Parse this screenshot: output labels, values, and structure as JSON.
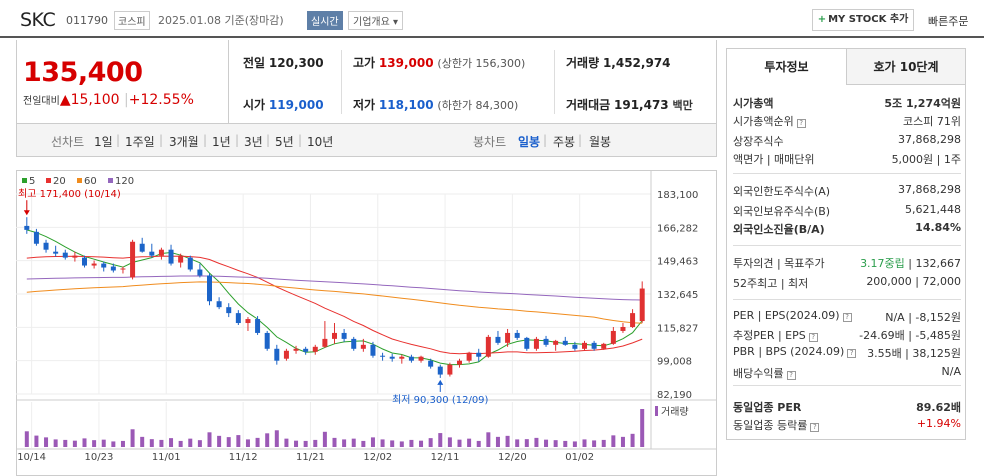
{
  "header": {
    "name": "SKC",
    "code": "011790",
    "market": "코스피",
    "date": "2025.01.08 기준(장마감)",
    "realtime": "실시간",
    "overview": "기업개요",
    "mystock_plus": "+",
    "mystock": "MY STOCK 추가",
    "quick": "빠른주문"
  },
  "price": {
    "current": "135,400",
    "change_label": "전일대비",
    "change_arrow": "▲",
    "change": "15,100",
    "change_pct": "+12.55%"
  },
  "quote": {
    "prev_label": "전일",
    "prev": "120,300",
    "high_label": "고가",
    "high": "139,000",
    "upper_limit": "(상한가 156,300)",
    "volume_label": "거래량",
    "volume": "1,452,974",
    "open_label": "시가",
    "open": "119,000",
    "low_label": "저가",
    "low": "118,100",
    "lower_limit": "(하한가 84,300)",
    "amount_label": "거래대금",
    "amount": "191,473",
    "amount_unit": "백만"
  },
  "toolbar": {
    "line_chart": "선차트",
    "periods": [
      "1일",
      "1주일",
      "3개월",
      "1년",
      "3년",
      "5년",
      "10년"
    ],
    "candle_chart": "봉차트",
    "candle_periods": [
      "일봉",
      "주봉",
      "월봉"
    ],
    "selected_candle": "일봉"
  },
  "chart_data": {
    "type": "candlestick",
    "legend": [
      {
        "name": "5",
        "color": "#2ca02c"
      },
      {
        "name": "20",
        "color": "#e8312f"
      },
      {
        "name": "60",
        "color": "#f08c1e"
      },
      {
        "name": "120",
        "color": "#9467bd"
      }
    ],
    "y_ticks": [
      "183,100",
      "166,282",
      "149,463",
      "132,645",
      "115,827",
      "99,008",
      "82,190"
    ],
    "ylim": [
      82190,
      183100
    ],
    "x_ticks": [
      "10/14",
      "10/23",
      "11/01",
      "11/12",
      "11/21",
      "12/02",
      "12/11",
      "12/20",
      "01/02"
    ],
    "high_label": "최고 171,400 (10/14)",
    "low_label": "최저 90,300 (12/09)",
    "volume_label": "거래량",
    "candles": [
      [
        167000,
        171400,
        163000,
        165000
      ],
      [
        164000,
        165500,
        157000,
        158000
      ],
      [
        158500,
        160000,
        153500,
        155000
      ],
      [
        154000,
        157000,
        151500,
        153000
      ],
      [
        153500,
        155000,
        150000,
        151000
      ],
      [
        151000,
        154000,
        149000,
        152000
      ],
      [
        151000,
        152000,
        146000,
        147000
      ],
      [
        147000,
        149500,
        145500,
        148000
      ],
      [
        148000,
        149000,
        144000,
        146000
      ],
      [
        146500,
        148000,
        143500,
        144500
      ],
      [
        145000,
        146500,
        143000,
        145500
      ],
      [
        141000,
        160000,
        140000,
        159000
      ],
      [
        158000,
        161000,
        153500,
        154000
      ],
      [
        154000,
        158000,
        151000,
        152000
      ],
      [
        152000,
        156000,
        150000,
        155000
      ],
      [
        155000,
        157500,
        147000,
        148000
      ],
      [
        148500,
        153000,
        146000,
        152000
      ],
      [
        151000,
        152000,
        144000,
        145000
      ],
      [
        145000,
        148000,
        141000,
        142000
      ],
      [
        142000,
        143000,
        127000,
        129000
      ],
      [
        129000,
        131000,
        125000,
        126000
      ],
      [
        126000,
        128000,
        121000,
        123000
      ],
      [
        123000,
        124500,
        117000,
        118000
      ],
      [
        118000,
        121000,
        114000,
        120000
      ],
      [
        120000,
        121500,
        112000,
        113000
      ],
      [
        113000,
        114000,
        104000,
        105000
      ],
      [
        105000,
        107000,
        97000,
        99000
      ],
      [
        100000,
        105000,
        99000,
        104000
      ],
      [
        104000,
        106500,
        102500,
        105000
      ],
      [
        105000,
        106000,
        102000,
        103500
      ],
      [
        103500,
        107000,
        102000,
        106000
      ],
      [
        106000,
        119000,
        105500,
        110000
      ],
      [
        110000,
        118000,
        107500,
        113000
      ],
      [
        113000,
        115000,
        108500,
        110000
      ],
      [
        110000,
        111000,
        104000,
        105000
      ],
      [
        105000,
        110000,
        103500,
        107000
      ],
      [
        107000,
        108500,
        100500,
        101500
      ],
      [
        101500,
        103000,
        99000,
        101000
      ],
      [
        101000,
        102500,
        98500,
        100000
      ],
      [
        100000,
        102000,
        97500,
        101000
      ],
      [
        101000,
        102000,
        98000,
        99000
      ],
      [
        99000,
        101500,
        98000,
        101000
      ],
      [
        99000,
        100000,
        95000,
        96000
      ],
      [
        96000,
        97000,
        90300,
        92000
      ],
      [
        92000,
        98000,
        91000,
        97000
      ],
      [
        97000,
        100000,
        95500,
        99000
      ],
      [
        99000,
        103500,
        98000,
        103000
      ],
      [
        103000,
        105000,
        98500,
        101000
      ],
      [
        101000,
        112000,
        100500,
        111000
      ],
      [
        111000,
        114000,
        107000,
        108000
      ],
      [
        108000,
        115000,
        106000,
        113000
      ],
      [
        113000,
        114500,
        109500,
        110500
      ],
      [
        110500,
        111000,
        104000,
        105000
      ],
      [
        105000,
        111000,
        104000,
        110000
      ],
      [
        110000,
        111500,
        106000,
        107000
      ],
      [
        107000,
        109500,
        104000,
        109000
      ],
      [
        109000,
        111000,
        106500,
        107000
      ],
      [
        107000,
        108500,
        104000,
        105000
      ],
      [
        105000,
        109000,
        104000,
        108000
      ],
      [
        108000,
        109000,
        104000,
        105000
      ],
      [
        105000,
        108000,
        104500,
        107500
      ],
      [
        107500,
        116000,
        107000,
        114000
      ],
      [
        114000,
        118000,
        113000,
        116000
      ],
      [
        116000,
        125000,
        115500,
        123000
      ],
      [
        119000,
        139000,
        118100,
        135400
      ]
    ],
    "volumes": [
      62,
      45,
      38,
      30,
      28,
      25,
      34,
      27,
      29,
      22,
      24,
      70,
      40,
      31,
      28,
      35,
      24,
      33,
      27,
      58,
      44,
      39,
      47,
      30,
      36,
      54,
      66,
      33,
      25,
      24,
      28,
      60,
      36,
      30,
      33,
      24,
      38,
      30,
      26,
      22,
      28,
      25,
      35,
      55,
      38,
      29,
      33,
      24,
      58,
      40,
      44,
      30,
      31,
      36,
      29,
      27,
      24,
      22,
      30,
      26,
      28,
      46,
      40,
      52,
      150
    ]
  },
  "info": {
    "tab_active": "투자정보",
    "tab_other": "호가 10단계",
    "rows": [
      {
        "label": "시가총액",
        "value": "5조 1,274억원",
        "bold": true
      },
      {
        "label": "시가총액순위",
        "value": "코스피 71위"
      },
      {
        "label": "상장주식수",
        "value": "37,868,298"
      },
      {
        "label": "액면가 | 매매단위",
        "value": "5,000원 | 1주"
      },
      {
        "label": "외국인한도주식수(A)",
        "value": "37,868,298"
      },
      {
        "label": "외국인보유주식수(B)",
        "value": "5,621,448"
      },
      {
        "label": "외국인소진율(B/A)",
        "value": "14.84%",
        "bold": true
      },
      {
        "label": "투자의견 | 목표주가",
        "value": "132,667",
        "value_pre": "3.17중립"
      },
      {
        "label": "52주최고 | 최저",
        "value": "200,000 | 72,000"
      },
      {
        "label": "PER | EPS(2024.09)",
        "value": "N/A | -8,152원"
      },
      {
        "label": "추정PER | EPS",
        "value": "-24.69배 | -5,485원"
      },
      {
        "label": "PBR | BPS (2024.09)",
        "value": "3.55배 | 38,125원"
      },
      {
        "label": "배당수익률",
        "value": "N/A"
      },
      {
        "label": "동일업종 PER",
        "value": "89.62배",
        "bold": true
      },
      {
        "label": "동일업종 등락률",
        "value": "+1.94%"
      }
    ]
  }
}
